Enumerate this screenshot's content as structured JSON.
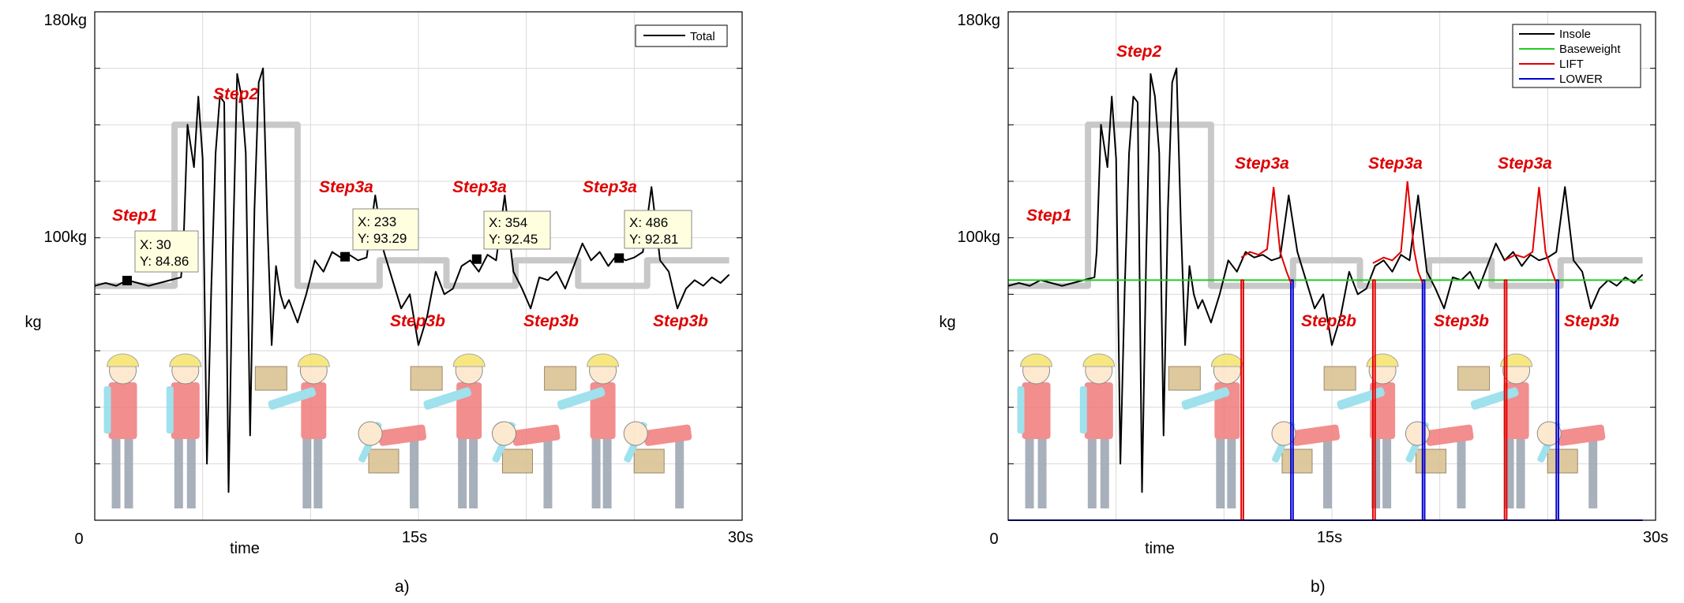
{
  "colors": {
    "grid": "#d9d9d9",
    "axis": "#000000",
    "total": "#000000",
    "insole": "#000000",
    "baseweight": "#22cc22",
    "lift": "#e00000",
    "lower": "#0000cc",
    "step_trace": "#c8c8c8",
    "annotation": "#e00000",
    "datatip_bg": "#ffffe0"
  },
  "figures": [
    {
      "caption": "a)",
      "ylabel": "kg",
      "xlabel": "time",
      "ytick_labels": {
        "top": "180kg",
        "mid": "100kg"
      },
      "xtick_labels": {
        "left": "0",
        "mid": "15s",
        "right": "30s"
      },
      "legend": [
        "Total"
      ],
      "annotations": [
        "Step1",
        "Step2",
        "Step3a",
        "Step3a",
        "Step3a",
        "Step3b",
        "Step3b",
        "Step3b"
      ],
      "datatips": [
        {
          "x_text": "X: 30",
          "y_text": "Y: 84.86"
        },
        {
          "x_text": "X: 233",
          "y_text": "Y: 93.29"
        },
        {
          "x_text": "X: 354",
          "y_text": "Y: 92.45"
        },
        {
          "x_text": "X: 486",
          "y_text": "Y: 92.81"
        }
      ]
    },
    {
      "caption": "b)",
      "ylabel": "kg",
      "xlabel": "time",
      "ytick_labels": {
        "top": "180kg",
        "mid": "100kg"
      },
      "xtick_labels": {
        "left": "0",
        "mid": "15s",
        "right": "30s"
      },
      "legend": [
        "Insole",
        "Baseweight",
        "LIFT",
        "LOWER"
      ],
      "annotations": [
        "Step1",
        "Step2",
        "Step3a",
        "Step3a",
        "Step3a",
        "Step3b",
        "Step3b",
        "Step3b"
      ]
    }
  ],
  "chart_data": [
    {
      "type": "line",
      "xlabel": "time",
      "ylabel": "kg",
      "xlim": [
        0,
        30
      ],
      "ylim": [
        0,
        180
      ],
      "grid": true,
      "legend_position": "top-right",
      "series": [
        {
          "name": "Total",
          "x": [
            0,
            0.5,
            1,
            1.5,
            2,
            2.5,
            3,
            3.5,
            4,
            4.1,
            4.3,
            4.6,
            4.8,
            5.0,
            5.2,
            5.4,
            5.6,
            5.8,
            6.0,
            6.2,
            6.4,
            6.6,
            6.8,
            7.0,
            7.2,
            7.4,
            7.6,
            7.8,
            8.0,
            8.2,
            8.4,
            8.6,
            8.8,
            9.0,
            9.4,
            9.8,
            10.2,
            10.6,
            11.0,
            11.4,
            11.8,
            12.2,
            12.6,
            13.0,
            13.4,
            13.8,
            14.2,
            14.6,
            15.0,
            15.4,
            15.8,
            16.2,
            16.6,
            17.0,
            17.4,
            17.8,
            18.2,
            18.6,
            19.0,
            19.4,
            19.8,
            20.2,
            20.6,
            21.0,
            21.4,
            21.8,
            22.2,
            22.6,
            23.0,
            23.4,
            23.8,
            24.2,
            24.6,
            25.0,
            25.4,
            25.8,
            26.2,
            26.6,
            27.0,
            27.4,
            27.8,
            28.2,
            28.6,
            29.0,
            29.4
          ],
          "y": [
            83,
            84,
            83,
            85,
            84,
            83,
            84,
            85,
            86,
            95,
            140,
            125,
            150,
            128,
            20,
            82,
            130,
            150,
            148,
            10,
            95,
            158,
            150,
            130,
            30,
            110,
            155,
            160,
            105,
            62,
            90,
            80,
            75,
            78,
            70,
            80,
            92,
            88,
            95,
            93,
            94,
            92,
            93,
            115,
            95,
            85,
            75,
            80,
            62,
            72,
            88,
            80,
            82,
            90,
            92,
            88,
            94,
            92,
            115,
            88,
            82,
            75,
            86,
            85,
            88,
            82,
            90,
            98,
            92,
            95,
            90,
            94,
            92,
            93,
            95,
            118,
            92,
            88,
            75,
            82,
            85,
            83,
            86,
            84,
            87
          ]
        }
      ],
      "step_trace": {
        "x": [
          0,
          3.7,
          3.7,
          9.4,
          9.4,
          13.2,
          13.2,
          16.3,
          16.3,
          19.5,
          19.5,
          22.4,
          22.4,
          25.6,
          25.6,
          29.4
        ],
        "y": [
          83,
          83,
          140,
          140,
          83,
          83,
          92,
          92,
          83,
          83,
          92,
          92,
          83,
          83,
          92,
          92
        ]
      },
      "datatips": [
        {
          "x": 30,
          "y": 84.86,
          "t": 1.5
        },
        {
          "x": 233,
          "y": 93.29,
          "t": 11.6
        },
        {
          "x": 354,
          "y": 92.45,
          "t": 17.7
        },
        {
          "x": 486,
          "y": 92.81,
          "t": 24.3
        }
      ]
    },
    {
      "type": "line",
      "xlabel": "time",
      "ylabel": "kg",
      "xlim": [
        0,
        30
      ],
      "ylim": [
        0,
        180
      ],
      "grid": true,
      "legend_position": "top-right",
      "series": [
        {
          "name": "Insole",
          "x": [
            0,
            0.5,
            1,
            1.5,
            2,
            2.5,
            3,
            3.5,
            4,
            4.1,
            4.3,
            4.6,
            4.8,
            5.0,
            5.2,
            5.4,
            5.6,
            5.8,
            6.0,
            6.2,
            6.4,
            6.6,
            6.8,
            7.0,
            7.2,
            7.4,
            7.6,
            7.8,
            8.0,
            8.2,
            8.4,
            8.6,
            8.8,
            9.0,
            9.4,
            9.8,
            10.2,
            10.6,
            11.0,
            11.4,
            11.8,
            12.2,
            12.6,
            13.0,
            13.4,
            13.8,
            14.2,
            14.6,
            15.0,
            15.4,
            15.8,
            16.2,
            16.6,
            17.0,
            17.4,
            17.8,
            18.2,
            18.6,
            19.0,
            19.4,
            19.8,
            20.2,
            20.6,
            21.0,
            21.4,
            21.8,
            22.2,
            22.6,
            23.0,
            23.4,
            23.8,
            24.2,
            24.6,
            25.0,
            25.4,
            25.8,
            26.2,
            26.6,
            27.0,
            27.4,
            27.8,
            28.2,
            28.6,
            29.0,
            29.4
          ],
          "y": [
            83,
            84,
            83,
            85,
            84,
            83,
            84,
            85,
            86,
            95,
            140,
            125,
            150,
            128,
            20,
            82,
            130,
            150,
            148,
            10,
            95,
            158,
            150,
            130,
            30,
            110,
            155,
            160,
            105,
            62,
            90,
            80,
            75,
            78,
            70,
            80,
            92,
            88,
            95,
            93,
            94,
            92,
            93,
            115,
            95,
            85,
            75,
            80,
            62,
            72,
            88,
            80,
            82,
            90,
            92,
            88,
            94,
            92,
            115,
            88,
            82,
            75,
            86,
            85,
            88,
            82,
            90,
            98,
            92,
            95,
            90,
            94,
            92,
            93,
            95,
            118,
            92,
            88,
            75,
            82,
            85,
            83,
            86,
            84,
            87
          ]
        },
        {
          "name": "Baseweight",
          "x": [
            0,
            29.4
          ],
          "y": [
            85,
            85
          ]
        },
        {
          "name": "LIFT",
          "x": [
            0,
            10.8,
            10.8,
            10.9,
            10.9,
            16.9,
            16.9,
            17.0,
            17.0,
            23.0,
            23.0,
            23.1,
            23.1,
            29.4
          ],
          "y": [
            0,
            0,
            85,
            85,
            0,
            0,
            85,
            85,
            0,
            0,
            85,
            85,
            0,
            0
          ]
        },
        {
          "name": "LOWER",
          "x": [
            0,
            13.1,
            13.1,
            13.2,
            13.2,
            19.2,
            19.2,
            19.3,
            19.3,
            25.4,
            25.4,
            25.5,
            25.5,
            29.4
          ],
          "y": [
            0,
            0,
            85,
            85,
            0,
            0,
            85,
            85,
            0,
            0,
            85,
            85,
            0,
            0
          ]
        }
      ],
      "lift_segments": [
        {
          "x": [
            10.8,
            11.2,
            11.6,
            12.0,
            12.3,
            12.6,
            12.9,
            13.1
          ],
          "y": [
            93,
            95,
            94,
            96,
            118,
            95,
            88,
            84
          ]
        },
        {
          "x": [
            16.9,
            17.4,
            17.8,
            18.2,
            18.5,
            18.8,
            19.0,
            19.2
          ],
          "y": [
            91,
            93,
            92,
            95,
            120,
            96,
            88,
            84
          ]
        },
        {
          "x": [
            23.0,
            23.5,
            23.9,
            24.3,
            24.6,
            24.9,
            25.2,
            25.4
          ],
          "y": [
            92,
            94,
            93,
            95,
            118,
            95,
            88,
            84
          ]
        }
      ],
      "step_trace": {
        "x": [
          0,
          3.7,
          3.7,
          9.4,
          9.4,
          13.2,
          13.2,
          16.3,
          16.3,
          19.5,
          19.5,
          22.4,
          22.4,
          25.6,
          25.6,
          29.4
        ],
        "y": [
          83,
          83,
          140,
          140,
          83,
          83,
          92,
          92,
          83,
          83,
          92,
          92,
          83,
          83,
          92,
          92
        ]
      }
    }
  ]
}
